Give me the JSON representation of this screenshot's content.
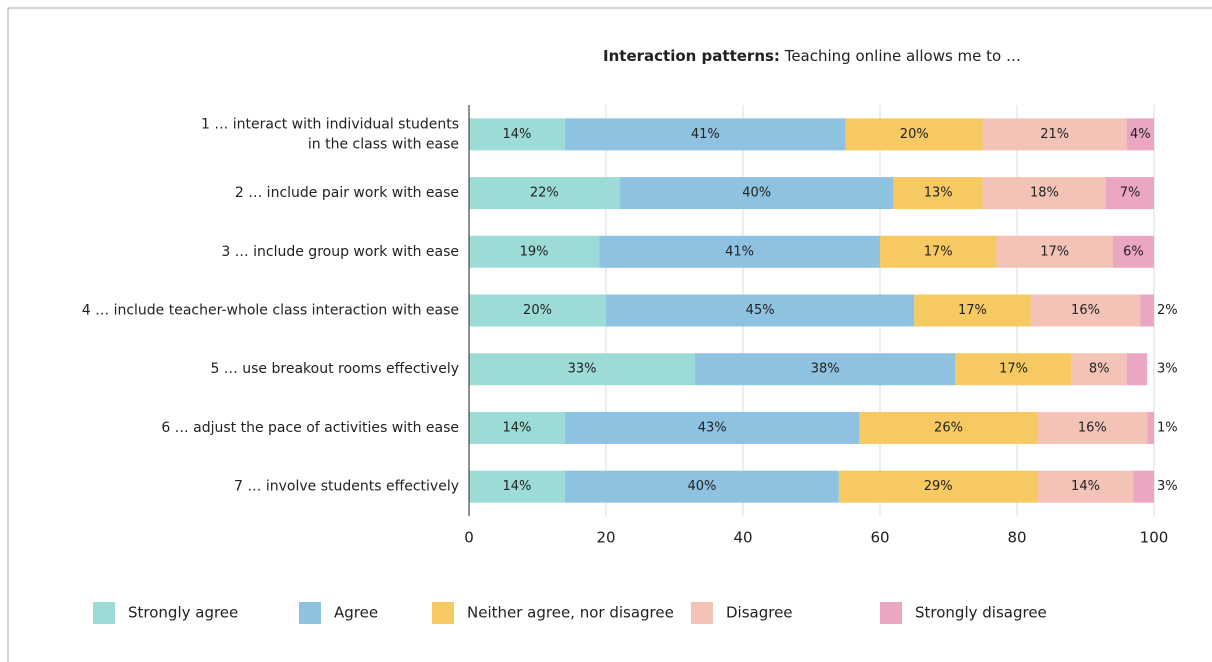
{
  "chart_data": {
    "type": "stacked_bar_horizontal",
    "title": "Interaction patterns:",
    "subtitle": "Teaching online allows me to …",
    "categories": [
      "1 … interact with individual students\nin the class with ease",
      "2 … include pair work with ease",
      "3 … include group work with ease",
      "4 … include teacher-whole class interaction with ease",
      "5 … use breakout rooms effectively",
      "6 … adjust the pace of activities with ease",
      "7 … involve students effectively"
    ],
    "series": [
      {
        "name": "Strongly agree",
        "color": "#9ddcd6",
        "values": [
          14,
          22,
          19,
          20,
          33,
          14,
          14
        ],
        "value_labels": [
          "14%",
          "22%",
          "19%",
          "20%",
          "33%",
          "14%",
          "14%"
        ]
      },
      {
        "name": "Agree",
        "color": "#8fc2e0",
        "values": [
          41,
          40,
          41,
          45,
          38,
          43,
          40
        ],
        "value_labels": [
          "41%",
          "40%",
          "41%",
          "45%",
          "38%",
          "43%",
          "40%"
        ]
      },
      {
        "name": "Neither agree, nor disagree",
        "color": "#f6c962",
        "values": [
          20,
          13,
          17,
          17,
          17,
          26,
          29
        ],
        "value_labels": [
          "20%",
          "13%",
          "17%",
          "17%",
          "17%",
          "26%",
          "29%"
        ]
      },
      {
        "name": "Disagree",
        "color": "#f3c3b8",
        "values": [
          21,
          18,
          17,
          16,
          8,
          16,
          14
        ],
        "value_labels": [
          "21%",
          "18%",
          "17%",
          "16%",
          "8%",
          "16%",
          "14%"
        ]
      },
      {
        "name": "Strongly disagree",
        "color": "#eba6c1",
        "values": [
          4,
          7,
          6,
          2,
          3,
          1,
          3
        ],
        "value_labels": [
          "4%",
          "7%",
          "6%",
          "2%",
          "3%",
          "1%",
          "3%"
        ]
      }
    ],
    "xlim": [
      0,
      100
    ],
    "xticks": [
      0,
      20,
      40,
      60,
      80,
      100
    ],
    "grid": true,
    "legend": "bottom"
  }
}
